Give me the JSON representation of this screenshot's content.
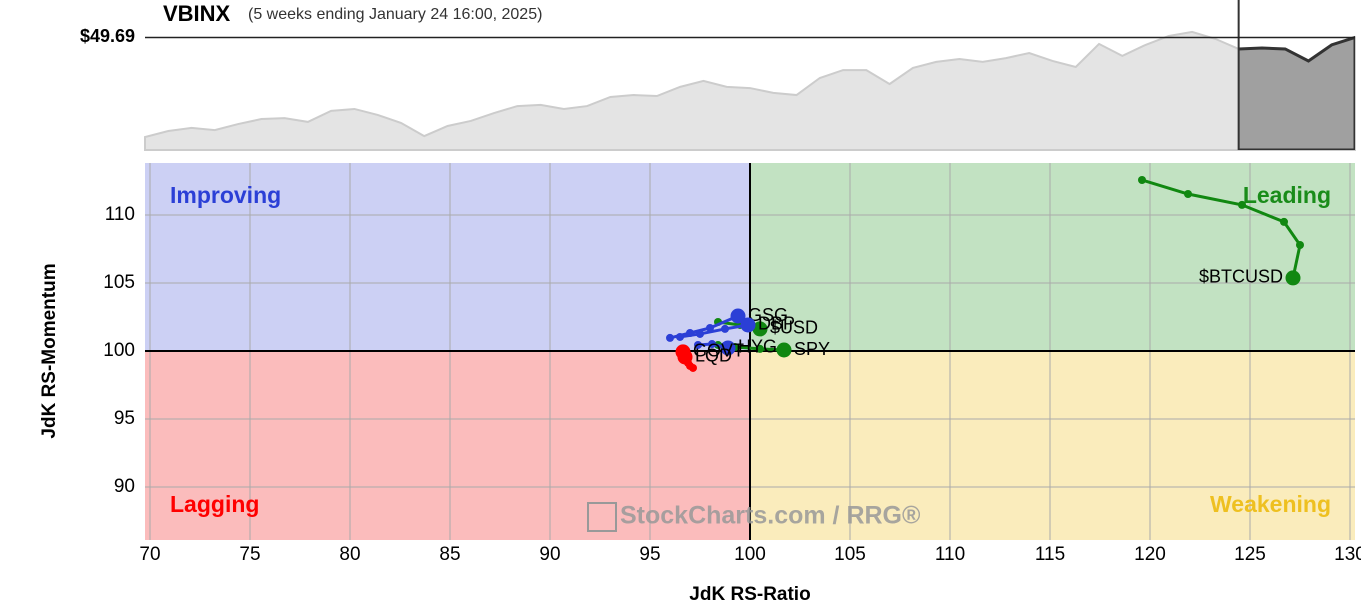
{
  "chart_data": [
    {
      "type": "area",
      "title": "VBINX",
      "subtitle": "(5 weeks ending January 24 16:00, 2025)",
      "color": "#e4e4e4",
      "line_color": "#cccccc",
      "values": [
        45.54,
        45.79,
        45.92,
        45.83,
        46.08,
        46.29,
        46.33,
        46.17,
        46.63,
        46.71,
        46.46,
        46.13,
        45.58,
        46.0,
        46.21,
        46.54,
        46.83,
        46.88,
        46.71,
        46.83,
        47.21,
        47.29,
        47.25,
        47.63,
        47.88,
        47.63,
        47.58,
        47.38,
        47.29,
        48.0,
        48.33,
        48.33,
        47.75,
        48.42,
        48.67,
        48.79,
        48.67,
        48.83,
        49.04,
        48.71,
        48.46,
        49.42,
        48.92,
        49.38,
        49.75,
        49.92,
        49.63,
        49.21,
        49.25,
        49.21,
        48.71,
        49.38,
        49.69
      ],
      "ylim": [
        45,
        50
      ],
      "yticks": [
        {
          "value": 49.69,
          "label": "$49.69"
        }
      ]
    },
    {
      "type": "rrg",
      "xlabel": "JdK RS-Ratio",
      "ylabel": "JdK RS-Momentum",
      "watermark": "StockCharts.com / RRG®",
      "xlim": [
        69.75,
        130.25
      ],
      "ylim": [
        86.1,
        113.82
      ],
      "xticks": [
        70,
        75,
        80,
        85,
        90,
        95,
        100,
        105,
        110,
        115,
        120,
        125,
        130
      ],
      "yticks": [
        90,
        95,
        100,
        105,
        110
      ],
      "grid": true,
      "center": [
        100,
        100
      ],
      "quadrants": [
        {
          "name": "Improving",
          "color": "#ccd0f4",
          "text_color": "#2b3fd6"
        },
        {
          "name": "Leading",
          "color": "#c2e2c2",
          "text_color": "#1a8c1a"
        },
        {
          "name": "Lagging",
          "color": "#fbbcbc",
          "text_color": "#ff0000"
        },
        {
          "name": "Weakening",
          "color": "#faecbc",
          "text_color": "#eec020"
        }
      ],
      "series": [
        {
          "name": "$BTCUSD",
          "color": "#118811",
          "x": [
            119.6,
            121.9,
            124.6,
            126.7,
            127.5,
            127.15
          ],
          "y": [
            112.57,
            111.54,
            110.74,
            109.49,
            107.79,
            105.37
          ]
        },
        {
          "name": "SPY",
          "color": "#118811",
          "x": [
            98.4,
            99.25,
            100.5,
            101.7
          ],
          "y": [
            100.44,
            100.29,
            100.15,
            100.07
          ]
        },
        {
          "name": "$USD",
          "color": "#118811",
          "x": [
            98.4,
            99.5,
            100.5
          ],
          "y": [
            102.13,
            101.91,
            101.62
          ]
        },
        {
          "name": "GSG",
          "color": "#2b3fd6",
          "x": [
            96.0,
            97.0,
            98.0,
            99.4
          ],
          "y": [
            100.96,
            101.32,
            101.69,
            102.57
          ]
        },
        {
          "name": "DBP",
          "color": "#2b3fd6",
          "x": [
            96.5,
            97.5,
            98.75,
            99.9
          ],
          "y": [
            101.03,
            101.25,
            101.62,
            101.91
          ]
        },
        {
          "name": "HYG",
          "color": "#2b3fd6",
          "x": [
            97.4,
            98.1,
            98.9
          ],
          "y": [
            100.44,
            100.51,
            100.22
          ]
        },
        {
          "name": "GOVT",
          "color": "#ff0000",
          "x": [
            97.0,
            96.75,
            96.65
          ],
          "y": [
            98.9,
            99.34,
            99.93
          ]
        },
        {
          "name": "LQD",
          "color": "#ff0000",
          "x": [
            97.15,
            96.9,
            96.75
          ],
          "y": [
            98.75,
            99.12,
            99.56
          ]
        }
      ]
    }
  ]
}
